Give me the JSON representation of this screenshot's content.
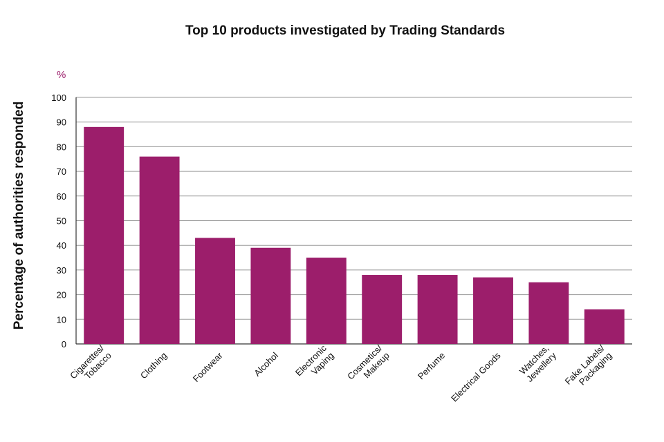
{
  "chart_data": {
    "type": "bar",
    "title": "Top 10 products investigated by Trading Standards",
    "ylabel": "Percentage of authorities responded",
    "yunit": "%",
    "ylim": [
      0,
      100
    ],
    "yticks": [
      0,
      10,
      20,
      30,
      40,
      50,
      60,
      70,
      80,
      90,
      100
    ],
    "grid": true,
    "bar_color": "#9c1e6b",
    "categories": [
      [
        "Cigarettes/",
        "Tobacco"
      ],
      [
        "Clothing"
      ],
      [
        "Footwear"
      ],
      [
        "Alcohol"
      ],
      [
        "Electronic",
        "Vaping"
      ],
      [
        "Cosmetics/",
        "Makeup"
      ],
      [
        "Perfume"
      ],
      [
        "Electrical Goods"
      ],
      [
        "Watches,",
        "Jewellery"
      ],
      [
        "Fake Labels/",
        "Packaging"
      ]
    ],
    "values": [
      88,
      76,
      43,
      39,
      35,
      28,
      28,
      27,
      25,
      14
    ]
  }
}
